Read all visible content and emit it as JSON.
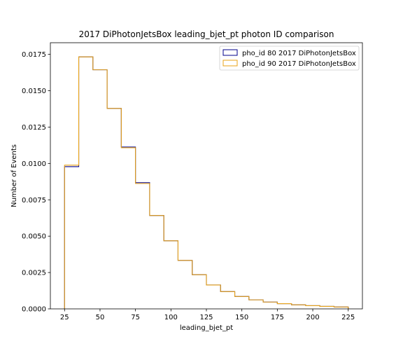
{
  "chart_data": {
    "type": "histogram-step",
    "title": "2017 DiPhotonJetsBox leading_bjet_pt photon ID comparison",
    "xlabel": "leading_bjet_pt",
    "ylabel": "Number of Events",
    "xlim": [
      15,
      235
    ],
    "ylim": [
      0,
      0.0183
    ],
    "x_ticks": [
      25,
      50,
      75,
      100,
      125,
      150,
      175,
      200,
      225
    ],
    "y_ticks": [
      0.0,
      0.0025,
      0.005,
      0.0075,
      0.01,
      0.0125,
      0.015,
      0.0175
    ],
    "y_tick_labels": [
      "0.0000",
      "0.0025",
      "0.0050",
      "0.0075",
      "0.0100",
      "0.0125",
      "0.0150",
      "0.0175"
    ],
    "grid": false,
    "legend_position": "top-right",
    "bin_edges": [
      25,
      35,
      45,
      55,
      65,
      75,
      85,
      95,
      105,
      115,
      125,
      135,
      145,
      155,
      165,
      175,
      185,
      195,
      205,
      215,
      225
    ],
    "series": [
      {
        "name": "pho_id 80 2017 DiPhotonJetsBox",
        "color": "#00008b",
        "values": [
          0.00978,
          0.01733,
          0.01644,
          0.01378,
          0.01113,
          0.00868,
          0.00642,
          0.00468,
          0.00333,
          0.00235,
          0.00164,
          0.00119,
          0.00085,
          0.00062,
          0.00047,
          0.00036,
          0.00028,
          0.00022,
          0.00017,
          0.00013
        ]
      },
      {
        "name": "pho_id 90 2017 DiPhotonJetsBox",
        "color": "#e8a317",
        "values": [
          0.00988,
          0.01733,
          0.01644,
          0.01378,
          0.01108,
          0.00862,
          0.00642,
          0.00468,
          0.00333,
          0.00235,
          0.00164,
          0.00119,
          0.00085,
          0.00062,
          0.00047,
          0.00036,
          0.00028,
          0.00022,
          0.00017,
          0.00013
        ]
      }
    ]
  }
}
